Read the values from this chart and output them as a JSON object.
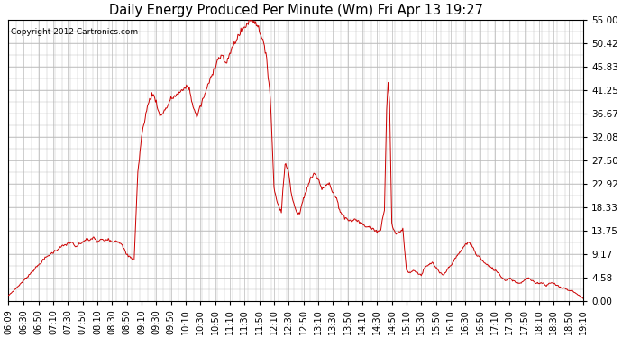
{
  "title": "Daily Energy Produced Per Minute (Wm) Fri Apr 13 19:27",
  "copyright": "Copyright 2012 Cartronics.com",
  "line_color": "#cc0000",
  "bg_color": "#ffffff",
  "grid_color": "#bbbbbb",
  "ylim": [
    0,
    55.0
  ],
  "yticks": [
    0.0,
    4.58,
    9.17,
    13.75,
    18.33,
    22.92,
    27.5,
    32.08,
    36.67,
    41.25,
    45.83,
    50.42,
    55.0
  ],
  "xtick_labels": [
    "06:09",
    "06:30",
    "06:50",
    "07:10",
    "07:30",
    "07:50",
    "08:10",
    "08:30",
    "08:50",
    "09:10",
    "09:30",
    "09:50",
    "10:10",
    "10:30",
    "10:50",
    "11:10",
    "11:30",
    "11:50",
    "12:10",
    "12:30",
    "12:50",
    "13:10",
    "13:30",
    "13:50",
    "14:10",
    "14:30",
    "14:50",
    "15:10",
    "15:30",
    "15:50",
    "16:10",
    "16:30",
    "16:50",
    "17:10",
    "17:30",
    "17:50",
    "18:10",
    "18:30",
    "18:50",
    "19:10"
  ],
  "figsize": [
    6.9,
    3.75
  ],
  "dpi": 100
}
